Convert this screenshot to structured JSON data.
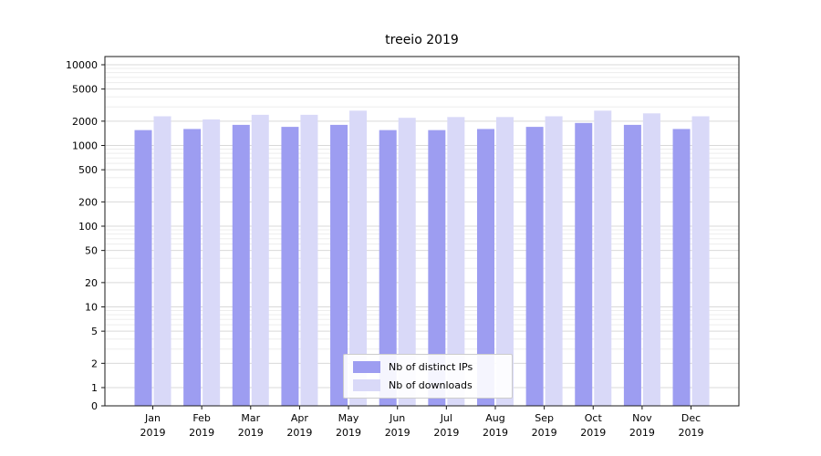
{
  "chart_data": {
    "type": "bar",
    "title": "treeio 2019",
    "xlabel": "",
    "ylabel": "",
    "yscale": "symlog",
    "ylim": [
      0,
      10000
    ],
    "grid": true,
    "legend_position": "lower center",
    "yticks": [
      0,
      1,
      2,
      5,
      10,
      20,
      50,
      100,
      200,
      500,
      1000,
      2000,
      5000,
      10000
    ],
    "categories": [
      "Jan 2019",
      "Feb 2019",
      "Mar 2019",
      "Apr 2019",
      "May 2019",
      "Jun 2019",
      "Jul 2019",
      "Aug 2019",
      "Sep 2019",
      "Oct 2019",
      "Nov 2019",
      "Dec 2019"
    ],
    "series": [
      {
        "name": "Nb of distinct IPs",
        "color": "#9d9df1",
        "values": [
          1550,
          1600,
          1800,
          1700,
          1800,
          1550,
          1550,
          1600,
          1700,
          1900,
          1800,
          1600
        ]
      },
      {
        "name": "Nb of downloads",
        "color": "#d9d9f8",
        "values": [
          2300,
          2100,
          2400,
          2400,
          2700,
          2200,
          2250,
          2250,
          2300,
          2700,
          2500,
          2300
        ]
      }
    ],
    "colors": {
      "major_gridline": "#d9d9d9",
      "minor_gridline": "#ededed",
      "axis": "#1a1a1a"
    }
  }
}
